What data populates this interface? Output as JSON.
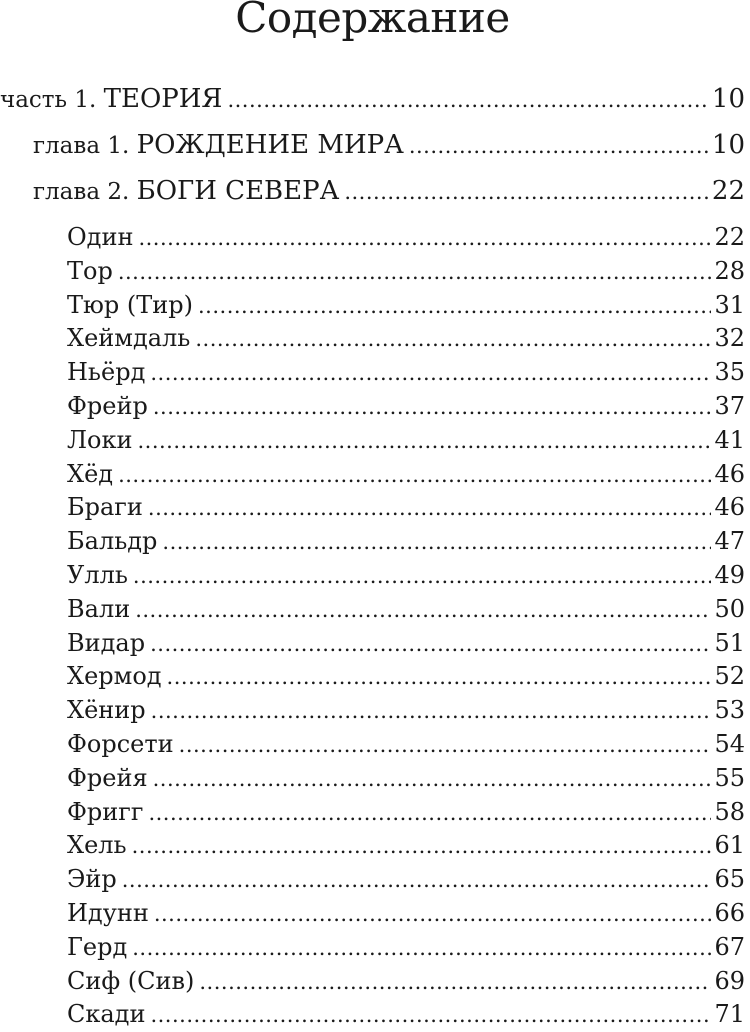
{
  "page_title": "Содержание",
  "colors": {
    "text_color": "#1a1a1a",
    "background_color": "#ffffff"
  },
  "toc": {
    "rows": [
      {
        "type": "part",
        "prefix": "часть 1.",
        "label": "ТЕОРИЯ",
        "page": "10"
      },
      {
        "type": "chapter",
        "prefix": "глава 1.",
        "label": "РОЖДЕНИЕ МИРА",
        "page": "10"
      },
      {
        "type": "chapter",
        "prefix": "глава 2.",
        "label": "БОГИ СЕВЕРА",
        "page": "22"
      },
      {
        "type": "entry",
        "label": "Один",
        "page": "22"
      },
      {
        "type": "entry",
        "label": "Тор",
        "page": "28"
      },
      {
        "type": "entry",
        "label": "Тюр (Тир)",
        "page": "31"
      },
      {
        "type": "entry",
        "label": "Хеймдаль",
        "page": "32"
      },
      {
        "type": "entry",
        "label": "Ньёрд",
        "page": "35"
      },
      {
        "type": "entry",
        "label": "Фрейр",
        "page": "37"
      },
      {
        "type": "entry",
        "label": "Локи",
        "page": "41"
      },
      {
        "type": "entry",
        "label": "Хёд",
        "page": "46"
      },
      {
        "type": "entry",
        "label": "Браги",
        "page": "46"
      },
      {
        "type": "entry",
        "label": "Бальдр",
        "page": "47"
      },
      {
        "type": "entry",
        "label": "Улль",
        "page": "49"
      },
      {
        "type": "entry",
        "label": "Вали",
        "page": "50"
      },
      {
        "type": "entry",
        "label": "Видар",
        "page": "51"
      },
      {
        "type": "entry",
        "label": "Хермод",
        "page": "52"
      },
      {
        "type": "entry",
        "label": "Хёнир",
        "page": "53"
      },
      {
        "type": "entry",
        "label": "Форсети",
        "page": "54"
      },
      {
        "type": "entry",
        "label": "Фрейя",
        "page": "55"
      },
      {
        "type": "entry",
        "label": "Фригг",
        "page": "58"
      },
      {
        "type": "entry",
        "label": "Хель",
        "page": "61"
      },
      {
        "type": "entry",
        "label": "Эйр",
        "page": "65"
      },
      {
        "type": "entry",
        "label": "Идунн",
        "page": "66"
      },
      {
        "type": "entry",
        "label": "Герд",
        "page": "67"
      },
      {
        "type": "entry",
        "label": "Сиф (Сив)",
        "page": "69"
      },
      {
        "type": "entry",
        "label": "Скади",
        "page": "71"
      }
    ]
  }
}
